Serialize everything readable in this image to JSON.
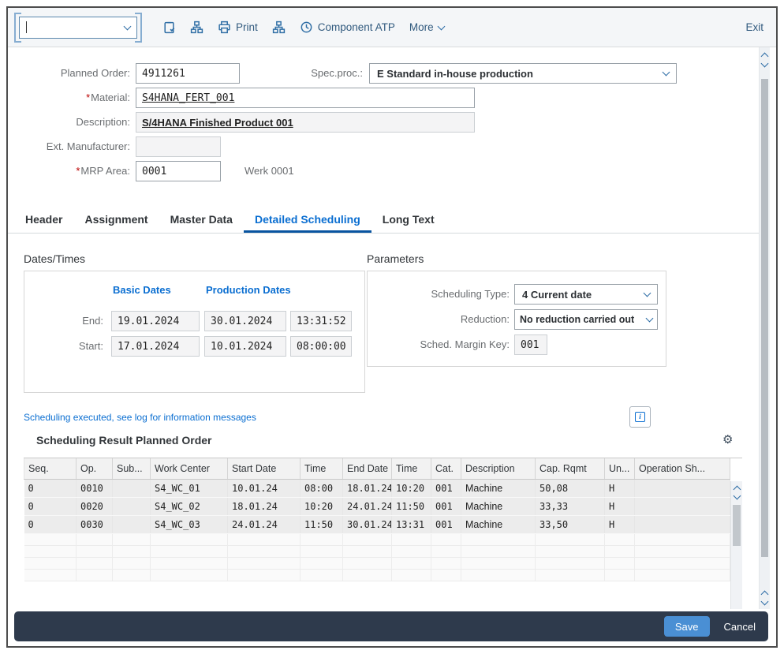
{
  "toolbar": {
    "combobox_value": "",
    "print_label": "Print",
    "component_atp_label": "Component ATP",
    "more_label": "More",
    "exit_label": "Exit",
    "icon_names": [
      "clipboard-check",
      "org-chart",
      "printer",
      "org-chart",
      "component-atp",
      "chevron-down"
    ]
  },
  "form": {
    "planned_order": {
      "label": "Planned Order:",
      "value": "4911261"
    },
    "spec_proc": {
      "label": "Spec.proc.:",
      "value": "E Standard in-house production"
    },
    "material": {
      "marker": "*",
      "label": "Material:",
      "value": "S4HANA_FERT_001"
    },
    "description": {
      "label": "Description:",
      "value": "S/4HANA Finished Product 001"
    },
    "ext_manufacturer": {
      "label": "Ext. Manufacturer:",
      "value": ""
    },
    "mrp_area": {
      "marker": "*",
      "label": "MRP Area:",
      "value": "0001",
      "suffix": "Werk 0001"
    }
  },
  "tabs": {
    "items": [
      "Header",
      "Assignment",
      "Master Data",
      "Detailed Scheduling",
      "Long Text"
    ],
    "active": "Detailed Scheduling"
  },
  "dates_times": {
    "title": "Dates/Times",
    "col_basic": "Basic Dates",
    "col_production": "Production Dates",
    "rows": [
      {
        "label": "End:",
        "basic": "19.01.2024",
        "production": "30.01.2024",
        "time": "13:31:52"
      },
      {
        "label": "Start:",
        "basic": "17.01.2024",
        "production": "10.01.2024",
        "time": "08:00:00"
      }
    ]
  },
  "parameters": {
    "title": "Parameters",
    "scheduling_type_label": "Scheduling Type:",
    "scheduling_type_value": "4 Current date",
    "reduction_label": "Reduction:",
    "reduction_value": "No reduction carried out",
    "sched_margin_key_label": "Sched. Margin Key:",
    "sched_margin_key_value": "001"
  },
  "message": {
    "text": "Scheduling executed, see log for information messages"
  },
  "table": {
    "title": "Scheduling Result Planned Order",
    "columns": [
      "Seq.",
      "Op.",
      "Sub...",
      "Work Center",
      "Start Date",
      "Time",
      "End Date",
      "Time",
      "Cat.",
      "Description",
      "Cap. Rqmt",
      "Un...",
      "Operation Sh..."
    ],
    "rows": [
      [
        "0",
        "0010",
        "",
        "S4_WC_01",
        "10.01.24",
        "08:00",
        "18.01.24",
        "10:20",
        "001",
        "Machine",
        "50,08",
        "H",
        ""
      ],
      [
        "0",
        "0020",
        "",
        "S4_WC_02",
        "18.01.24",
        "10:20",
        "24.01.24",
        "11:50",
        "001",
        "Machine",
        "33,33",
        "H",
        ""
      ],
      [
        "0",
        "0030",
        "",
        "S4_WC_03",
        "24.01.24",
        "11:50",
        "30.01.24",
        "13:31",
        "001",
        "Machine",
        "33,50",
        "H",
        ""
      ]
    ],
    "empty_rows": 4
  },
  "footer": {
    "save_label": "Save",
    "cancel_label": "Cancel"
  },
  "colors": {
    "accent_blue": "#0a6ed1",
    "toolbar_icon_blue": "#2f6ea5",
    "tab_underline": "#0854a0",
    "footer_bg": "#2e3a4c",
    "save_button_bg": "#4a8fd4",
    "required_marker": "#bb0000"
  }
}
